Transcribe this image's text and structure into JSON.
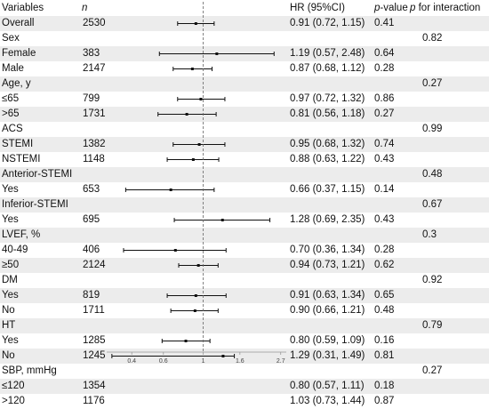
{
  "headers": {
    "variables": "Variables",
    "n": "n",
    "hr": "HR (95%CI)",
    "pvalue": "p-value",
    "pvalue_p": "p",
    "pvalue_rest": "-value",
    "pint": "p for interaction",
    "pint_p": "p",
    "pint_rest": " for interaction"
  },
  "chart_data": {
    "type": "forest",
    "x_scale": "log",
    "xlim": [
      0.29,
      2.9
    ],
    "reference_line": 1,
    "x_ticks": [
      0.4,
      0.6,
      1,
      1.6,
      2.7
    ],
    "x_tick_labels": [
      "0.4",
      "0.6",
      "1",
      "1.6",
      "2.7"
    ],
    "rows": [
      {
        "label": "Overall",
        "n": "2530",
        "hr": 0.91,
        "lo": 0.72,
        "hi": 1.15,
        "hr_text": "0.91 (0.72, 1.15)",
        "p": "0.41",
        "p_int": ""
      },
      {
        "label": "Sex",
        "n": "",
        "hr": null,
        "lo": null,
        "hi": null,
        "hr_text": "",
        "p": "",
        "p_int": "0.82"
      },
      {
        "label": "Female",
        "n": "383",
        "hr": 1.19,
        "lo": 0.57,
        "hi": 2.48,
        "hr_text": "1.19 (0.57, 2.48)",
        "p": "0.64",
        "p_int": ""
      },
      {
        "label": "Male",
        "n": "2147",
        "hr": 0.87,
        "lo": 0.68,
        "hi": 1.12,
        "hr_text": "0.87 (0.68, 1.12)",
        "p": "0.28",
        "p_int": ""
      },
      {
        "label": "Age, y",
        "n": "",
        "hr": null,
        "lo": null,
        "hi": null,
        "hr_text": "",
        "p": "",
        "p_int": "0.27"
      },
      {
        "label": "≤65",
        "n": "799",
        "hr": 0.97,
        "lo": 0.72,
        "hi": 1.32,
        "hr_text": "0.97 (0.72, 1.32)",
        "p": "0.86",
        "p_int": ""
      },
      {
        "label": ">65",
        "n": "1731",
        "hr": 0.81,
        "lo": 0.56,
        "hi": 1.18,
        "hr_text": "0.81 (0.56, 1.18)",
        "p": "0.27",
        "p_int": ""
      },
      {
        "label": "ACS",
        "n": "",
        "hr": null,
        "lo": null,
        "hi": null,
        "hr_text": "",
        "p": "",
        "p_int": "0.99"
      },
      {
        "label": "STEMI",
        "n": "1382",
        "hr": 0.95,
        "lo": 0.68,
        "hi": 1.32,
        "hr_text": "0.95 (0.68, 1.32)",
        "p": "0.74",
        "p_int": ""
      },
      {
        "label": "NSTEMI",
        "n": "1148",
        "hr": 0.88,
        "lo": 0.63,
        "hi": 1.22,
        "hr_text": "0.88 (0.63, 1.22)",
        "p": "0.43",
        "p_int": ""
      },
      {
        "label": "Anterior-STEMI",
        "n": "",
        "hr": null,
        "lo": null,
        "hi": null,
        "hr_text": "",
        "p": "",
        "p_int": "0.48"
      },
      {
        "label": "Yes",
        "n": "653",
        "hr": 0.66,
        "lo": 0.37,
        "hi": 1.15,
        "hr_text": "0.66 (0.37, 1.15)",
        "p": "0.14",
        "p_int": ""
      },
      {
        "label": "Inferior-STEMI",
        "n": "",
        "hr": null,
        "lo": null,
        "hi": null,
        "hr_text": "",
        "p": "",
        "p_int": "0.67"
      },
      {
        "label": "Yes",
        "n": "695",
        "hr": 1.28,
        "lo": 0.69,
        "hi": 2.35,
        "hr_text": "1.28 (0.69, 2.35)",
        "p": "0.43",
        "p_int": ""
      },
      {
        "label": "LVEF, %",
        "n": "",
        "hr": null,
        "lo": null,
        "hi": null,
        "hr_text": "",
        "p": "",
        "p_int": "0.3"
      },
      {
        "label": "40-49",
        "n": "406",
        "hr": 0.7,
        "lo": 0.36,
        "hi": 1.34,
        "hr_text": "0.70 (0.36, 1.34)",
        "p": "0.28",
        "p_int": ""
      },
      {
        "label": "≥50",
        "n": "2124",
        "hr": 0.94,
        "lo": 0.73,
        "hi": 1.21,
        "hr_text": "0.94 (0.73, 1.21)",
        "p": "0.62",
        "p_int": ""
      },
      {
        "label": "DM",
        "n": "",
        "hr": null,
        "lo": null,
        "hi": null,
        "hr_text": "",
        "p": "",
        "p_int": "0.92"
      },
      {
        "label": "Yes",
        "n": "819",
        "hr": 0.91,
        "lo": 0.63,
        "hi": 1.34,
        "hr_text": "0.91 (0.63, 1.34)",
        "p": "0.65",
        "p_int": ""
      },
      {
        "label": "No",
        "n": "1711",
        "hr": 0.9,
        "lo": 0.66,
        "hi": 1.21,
        "hr_text": "0.90 (0.66, 1.21)",
        "p": "0.48",
        "p_int": ""
      },
      {
        "label": "HT",
        "n": "",
        "hr": null,
        "lo": null,
        "hi": null,
        "hr_text": "",
        "p": "",
        "p_int": "0.79"
      },
      {
        "label": "Yes",
        "n": "1285",
        "hr": 0.8,
        "lo": 0.59,
        "hi": 1.09,
        "hr_text": "0.80 (0.59, 1.09)",
        "p": "0.16",
        "p_int": ""
      },
      {
        "label": "No",
        "n": "1245",
        "hr": 1.29,
        "lo": 0.31,
        "hi": 1.49,
        "hr_text": "1.29 (0.31, 1.49)",
        "p": "0.81",
        "p_int": ""
      },
      {
        "label": "SBP, mmHg",
        "n": "",
        "hr": null,
        "lo": null,
        "hi": null,
        "hr_text": "",
        "p": "",
        "p_int": "0.27"
      },
      {
        "label": "≤120",
        "n": "1354",
        "hr": 0.8,
        "lo": 0.57,
        "hi": 1.11,
        "hr_text": "0.80 (0.57, 1.11)",
        "p": "0.18",
        "p_int": ""
      },
      {
        "label": ">120",
        "n": "1176",
        "hr": 1.03,
        "lo": 0.73,
        "hi": 1.44,
        "hr_text": "1.03 (0.73, 1.44)",
        "p": "0.87",
        "p_int": ""
      }
    ]
  }
}
